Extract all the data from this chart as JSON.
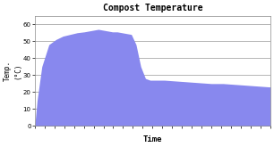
{
  "title": "Compost Temperature",
  "xlabel": "Time",
  "ylabel": "Temp.\n(°C)",
  "ylim": [
    0,
    65
  ],
  "yticks": [
    0,
    10,
    20,
    30,
    40,
    50,
    60
  ],
  "fill_color": "#8888EE",
  "fill_alpha": 1.0,
  "line_color": "#9999EE",
  "bg_color": "#FFFFFF",
  "plot_bg_color": "#FFFFFF",
  "x": [
    0,
    1,
    3,
    6,
    9,
    12,
    15,
    18,
    21,
    23,
    25,
    27,
    29,
    31,
    33,
    35,
    37,
    39,
    41,
    43,
    45,
    47,
    49,
    51,
    55,
    60,
    65,
    70,
    75,
    80,
    85,
    90,
    95,
    100
  ],
  "y": [
    0,
    15,
    35,
    48,
    51,
    53,
    54,
    55,
    55.5,
    56,
    56.5,
    57,
    56.5,
    56,
    55.5,
    55.5,
    55,
    54.5,
    54,
    48,
    35,
    28,
    27,
    27,
    27,
    26.5,
    26,
    25.5,
    25,
    25,
    24.5,
    24,
    23.5,
    23
  ]
}
